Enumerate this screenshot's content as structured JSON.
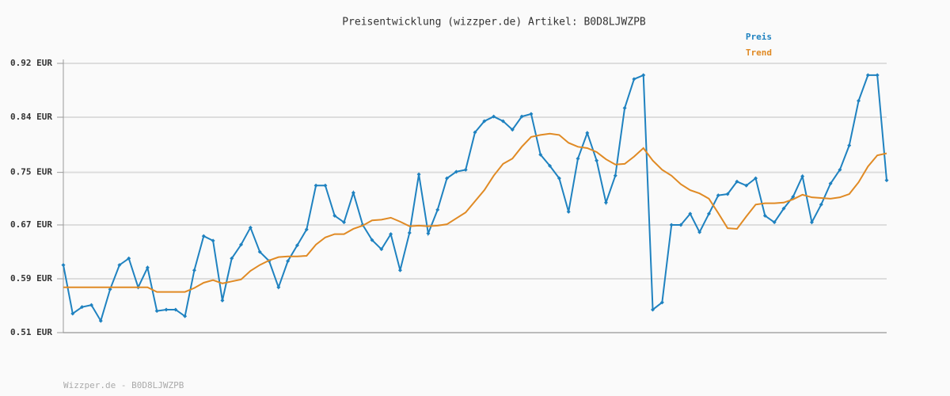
{
  "chart_data": {
    "type": "line",
    "title": "Preisentwicklung (wizzper.de) Artikel: B0D8LJWZPB",
    "footer": "Wizzper.de - B0D8LJWZPB",
    "ylim": [
      0.51,
      0.92
    ],
    "yticks": [
      {
        "value": 0.51,
        "label": "0.51 EUR"
      },
      {
        "value": 0.592,
        "label": "0.59 EUR"
      },
      {
        "value": 0.674,
        "label": "0.67 EUR"
      },
      {
        "value": 0.754,
        "label": "0.75 EUR"
      },
      {
        "value": 0.838,
        "label": "0.84 EUR"
      },
      {
        "value": 0.92,
        "label": "0.92 EUR"
      }
    ],
    "grid": true,
    "legend": "top-right",
    "series": [
      {
        "name": "Preis",
        "color": "#1f82c0",
        "markers": true,
        "values": [
          0.613,
          0.539,
          0.549,
          0.552,
          0.528,
          0.576,
          0.613,
          0.623,
          0.579,
          0.609,
          0.543,
          0.545,
          0.545,
          0.535,
          0.605,
          0.657,
          0.65,
          0.559,
          0.623,
          0.644,
          0.67,
          0.633,
          0.619,
          0.579,
          0.619,
          0.643,
          0.667,
          0.734,
          0.734,
          0.688,
          0.678,
          0.723,
          0.674,
          0.651,
          0.637,
          0.66,
          0.605,
          0.662,
          0.751,
          0.661,
          0.697,
          0.745,
          0.755,
          0.758,
          0.815,
          0.832,
          0.839,
          0.832,
          0.819,
          0.839,
          0.843,
          0.781,
          0.764,
          0.745,
          0.694,
          0.775,
          0.814,
          0.772,
          0.708,
          0.749,
          0.852,
          0.896,
          0.902,
          0.545,
          0.556,
          0.674,
          0.674,
          0.691,
          0.663,
          0.691,
          0.719,
          0.721,
          0.74,
          0.734,
          0.745,
          0.688,
          0.678,
          0.699,
          0.717,
          0.748,
          0.678,
          0.705,
          0.737,
          0.758,
          0.795,
          0.863,
          0.902,
          0.902,
          0.742
        ]
      },
      {
        "name": "Trend",
        "color": "#e08a24",
        "markers": false,
        "values": [
          0.579,
          0.579,
          0.579,
          0.579,
          0.579,
          0.579,
          0.579,
          0.579,
          0.579,
          0.579,
          0.572,
          0.572,
          0.572,
          0.572,
          0.578,
          0.586,
          0.59,
          0.585,
          0.588,
          0.591,
          0.604,
          0.613,
          0.62,
          0.625,
          0.626,
          0.626,
          0.627,
          0.644,
          0.655,
          0.66,
          0.66,
          0.668,
          0.673,
          0.681,
          0.682,
          0.685,
          0.679,
          0.672,
          0.673,
          0.672,
          0.673,
          0.675,
          0.684,
          0.693,
          0.71,
          0.727,
          0.749,
          0.767,
          0.775,
          0.793,
          0.808,
          0.811,
          0.813,
          0.811,
          0.799,
          0.793,
          0.791,
          0.785,
          0.774,
          0.766,
          0.767,
          0.778,
          0.791,
          0.772,
          0.758,
          0.749,
          0.736,
          0.727,
          0.722,
          0.714,
          0.692,
          0.669,
          0.668,
          0.687,
          0.705,
          0.707,
          0.707,
          0.708,
          0.713,
          0.72,
          0.716,
          0.715,
          0.714,
          0.716,
          0.721,
          0.739,
          0.763,
          0.78,
          0.783
        ]
      }
    ]
  }
}
